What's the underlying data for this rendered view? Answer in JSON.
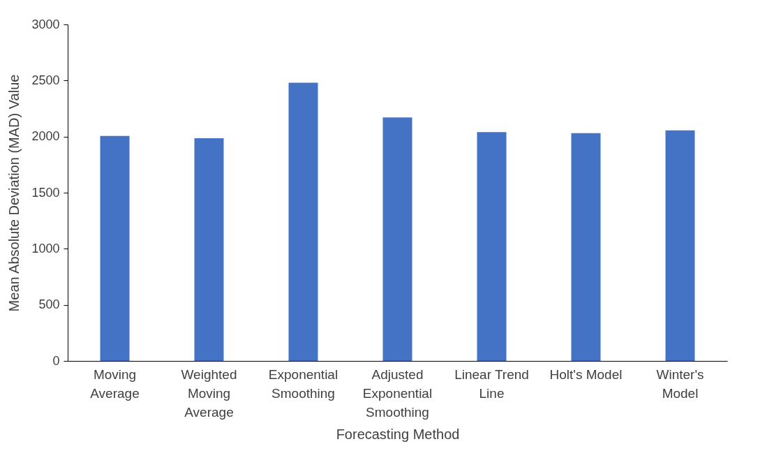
{
  "chart_data": {
    "type": "bar",
    "xlabel": "Forecasting Method",
    "ylabel": "Mean Absolute Deviation (MAD) Value",
    "categories": [
      "Moving Average",
      "Weighted Moving Average",
      "Exponential Smoothing",
      "Adjusted Exponential Smoothing",
      "Linear Trend Line",
      "Holt's Model",
      "Winter's Model"
    ],
    "values": [
      2005,
      1985,
      2480,
      2170,
      2040,
      2030,
      2055
    ],
    "color": "#4472c4",
    "ylim": [
      0,
      3000
    ],
    "yticks": [
      0,
      500,
      1000,
      1500,
      2000,
      2500,
      3000
    ],
    "grid": false
  }
}
